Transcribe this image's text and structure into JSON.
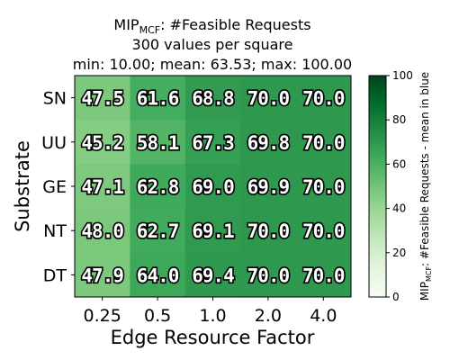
{
  "chart_data": {
    "type": "heatmap",
    "title_main": "MIP",
    "title_sub": "MCF",
    "title_rest": ": #Feasible Requests",
    "subtitle_1": "300 values per square",
    "subtitle_2": "min: 10.00; mean: 63.53; max: 100.00",
    "xlabel": "Edge Resource Factor",
    "ylabel": "Substrate",
    "x_categories": [
      "0.25",
      "0.5",
      "1.0",
      "2.0",
      "4.0"
    ],
    "y_categories": [
      "SN",
      "UU",
      "GE",
      "NT",
      "DT"
    ],
    "values": [
      [
        47.5,
        61.6,
        68.8,
        70.0,
        70.0
      ],
      [
        45.2,
        58.1,
        67.3,
        69.8,
        70.0
      ],
      [
        47.1,
        62.8,
        69.0,
        69.9,
        70.0
      ],
      [
        48.0,
        62.7,
        69.1,
        70.0,
        70.0
      ],
      [
        47.9,
        64.0,
        69.4,
        70.0,
        70.0
      ]
    ],
    "colorbar": {
      "min": 0,
      "max": 100,
      "ticks": [
        0,
        20,
        40,
        60,
        80,
        100
      ],
      "label_main": "MIP",
      "label_sub": "MCF",
      "label_rest": ": #Feasible Requests - mean in blue",
      "colormap": "Greens"
    }
  }
}
